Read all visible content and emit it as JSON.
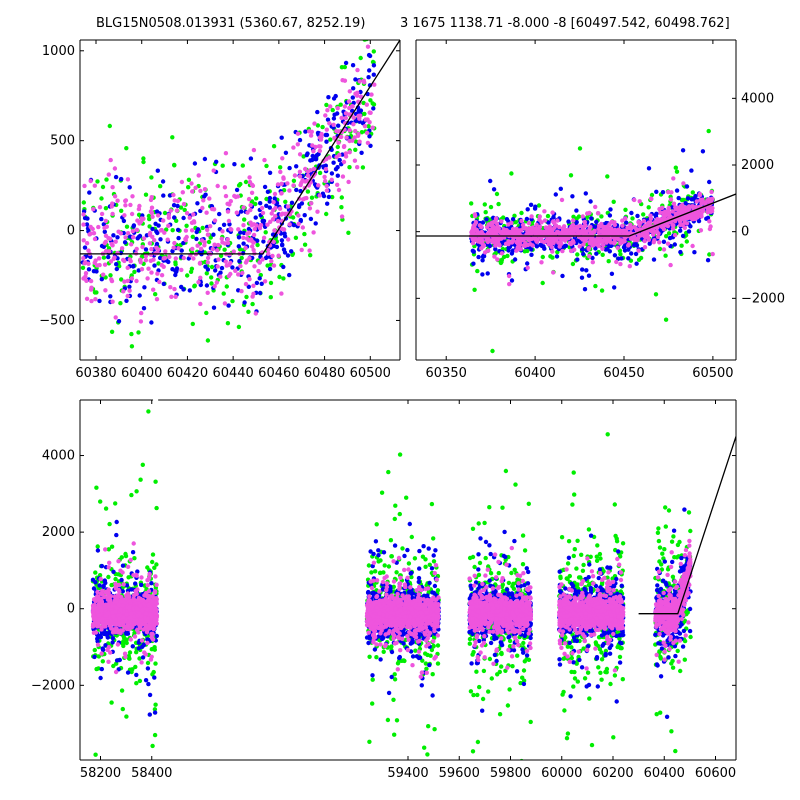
{
  "titles": {
    "left": "BLG15N0508.013931 (5360.67, 8252.19)",
    "right": "3 1675 1138.71 -8.000 -8 [60497.542, 60498.762]"
  },
  "colors": {
    "blue": "#0000ee",
    "green": "#00ee00",
    "magenta": "#ee55dd",
    "model": "#000000"
  },
  "chart_data": [
    {
      "panel": "top-left",
      "type": "scatter",
      "title": "",
      "xlabel": "",
      "ylabel": "",
      "xlim": [
        60373,
        60513
      ],
      "ylim": [
        -720,
        1060
      ],
      "xticks": [
        60380,
        60400,
        60420,
        60440,
        60460,
        60480,
        60500
      ],
      "yticks": [
        -500,
        0,
        500,
        1000
      ],
      "ytick_side": "left",
      "series": [
        {
          "color_key": "blue",
          "estimated_points": 420
        },
        {
          "color_key": "green",
          "estimated_points": 330
        },
        {
          "color_key": "magenta",
          "estimated_points": 520
        }
      ],
      "model_line": {
        "x": [
          60373,
          60453,
          60513
        ],
        "y": [
          -130,
          -130,
          1060
        ]
      }
    },
    {
      "panel": "top-right",
      "type": "scatter",
      "title": "",
      "xlabel": "",
      "ylabel": "",
      "xlim": [
        60333,
        60513
      ],
      "ylim": [
        -3850,
        5750
      ],
      "xticks": [
        60350,
        60400,
        60450,
        60500
      ],
      "yticks": [
        -2000,
        0,
        2000,
        4000
      ],
      "ytick_side": "right",
      "series": [
        {
          "color_key": "blue",
          "estimated_points": 700
        },
        {
          "color_key": "green",
          "estimated_points": 330
        },
        {
          "color_key": "magenta",
          "estimated_points": 900
        }
      ],
      "model_line": {
        "x": [
          60333,
          60453,
          60513
        ],
        "y": [
          -130,
          -130,
          1130
        ]
      }
    },
    {
      "panel": "bottom",
      "type": "scatter",
      "title": "",
      "xlabel": "",
      "ylabel": "",
      "xlim": [
        58120,
        60680
      ],
      "ylim": [
        -3950,
        5450
      ],
      "xticks": [
        58200,
        58400,
        59400,
        59600,
        59800,
        60000,
        60200,
        60400,
        60600
      ],
      "yticks": [
        -2000,
        0,
        2000,
        4000
      ],
      "ytick_side": "left",
      "axis_break": "gap in top spine between the 58400 and 59400 ticks",
      "seasons": [
        {
          "x_range": [
            58170,
            58420
          ]
        },
        {
          "x_range": [
            59240,
            59520
          ]
        },
        {
          "x_range": [
            59640,
            59880
          ]
        },
        {
          "x_range": [
            59990,
            60240
          ]
        },
        {
          "x_range": [
            60365,
            60503
          ]
        }
      ],
      "series": [
        {
          "color_key": "blue",
          "estimated_points": 2600
        },
        {
          "color_key": "green",
          "estimated_points": 1500
        },
        {
          "color_key": "magenta",
          "estimated_points": 4200
        }
      ],
      "model_line": {
        "x": [
          60300,
          60453,
          60680
        ],
        "y": [
          -130,
          -130,
          4500
        ]
      }
    }
  ]
}
